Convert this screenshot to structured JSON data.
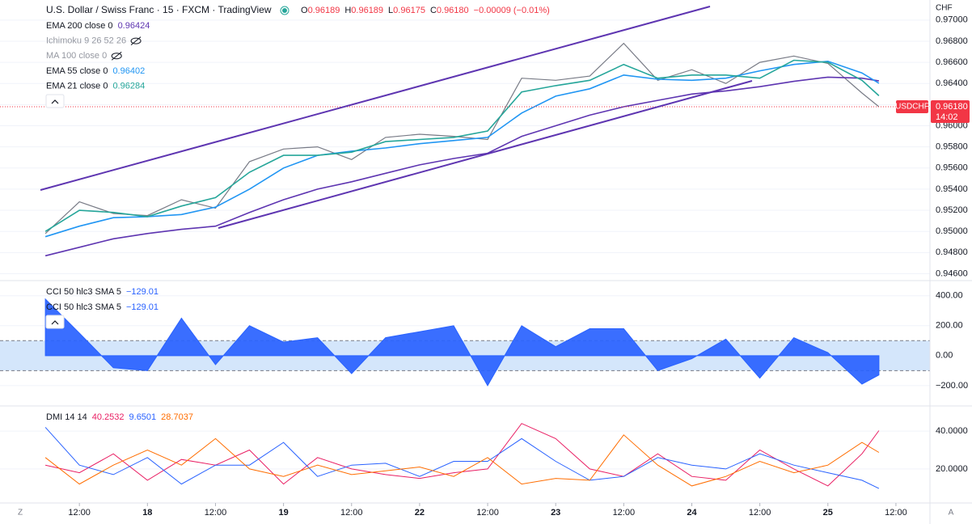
{
  "ui_buttons": [
    "Z",
    "A"
  ],
  "chart_data": [
    {
      "type": "line",
      "title": "U.S. Dollar / Swiss Franc · 15 · FXCM · TradingView",
      "ohlc": [
        {
          "key": "O",
          "value": "0.96189"
        },
        {
          "key": "H",
          "value": "0.96189"
        },
        {
          "key": "L",
          "value": "0.96175"
        },
        {
          "key": "C",
          "value": "0.96180"
        }
      ],
      "change": "−0.00009 (−0.01%)",
      "xlim": [
        -14,
        150
      ],
      "x": [
        -6,
        0,
        6,
        12,
        18,
        24,
        30,
        36,
        42,
        48,
        54,
        60,
        66,
        72,
        78,
        84,
        90,
        96,
        102,
        108,
        114,
        120,
        126,
        132,
        138,
        141
      ],
      "price": {
        "color": "#787b86",
        "values": [
          0.9498,
          0.9528,
          0.9517,
          0.9515,
          0.953,
          0.9522,
          0.9566,
          0.9578,
          0.958,
          0.9568,
          0.9589,
          0.9592,
          0.959,
          0.9587,
          0.9645,
          0.9643,
          0.9647,
          0.9678,
          0.9643,
          0.9653,
          0.964,
          0.966,
          0.9666,
          0.9659,
          0.9631,
          0.9618
        ]
      },
      "series": [
        {
          "name": "EMA 200 close 0",
          "color": "#5e35b1",
          "values": [
            0.9477,
            0.9485,
            0.9493,
            0.9498,
            0.9502,
            0.9505,
            0.9518,
            0.953,
            0.954,
            0.9547,
            0.9555,
            0.9563,
            0.9569,
            0.9574,
            0.959,
            0.96,
            0.961,
            0.9618,
            0.9624,
            0.963,
            0.9633,
            0.9637,
            0.9642,
            0.9646,
            0.9645,
            0.96424
          ]
        },
        {
          "name": "EMA 55 close 0",
          "color": "#2196f3",
          "values": [
            0.9495,
            0.9505,
            0.9513,
            0.9514,
            0.9516,
            0.9523,
            0.954,
            0.956,
            0.9572,
            0.9576,
            0.9579,
            0.9583,
            0.9586,
            0.9589,
            0.9612,
            0.9628,
            0.9635,
            0.9648,
            0.9644,
            0.9643,
            0.9645,
            0.9652,
            0.9658,
            0.9661,
            0.965,
            0.96402
          ]
        },
        {
          "name": "EMA 21 close 0",
          "color": "#26a69a",
          "values": [
            0.95,
            0.952,
            0.9518,
            0.9514,
            0.9524,
            0.9532,
            0.9556,
            0.9572,
            0.9572,
            0.9575,
            0.9585,
            0.9587,
            0.9589,
            0.9595,
            0.9632,
            0.9638,
            0.9643,
            0.9658,
            0.9645,
            0.9648,
            0.9648,
            0.9645,
            0.9662,
            0.966,
            0.9643,
            0.96284
          ]
        }
      ],
      "hidden_indicators": [
        "Ichimoku 9 26 52 26",
        "MA 100 close 0"
      ],
      "currency": "CHF",
      "price_tag": {
        "symbol": "USDCHF",
        "value": 0.9618,
        "label": "0.96180",
        "countdown": "14:02"
      },
      "ylim": [
        0.9455,
        0.9719
      ],
      "yticks": [
        {
          "value": 0.946,
          "label": "0.94600"
        },
        {
          "value": 0.948,
          "label": "0.94800"
        },
        {
          "value": 0.95,
          "label": "0.95000"
        },
        {
          "value": 0.952,
          "label": "0.95200"
        },
        {
          "value": 0.954,
          "label": "0.95400"
        },
        {
          "value": 0.956,
          "label": "0.95600"
        },
        {
          "value": 0.958,
          "label": "0.95800"
        },
        {
          "value": 0.96,
          "label": "0.96000"
        },
        {
          "value": 0.962,
          "label": "0.96200"
        },
        {
          "value": 0.964,
          "label": "0.96400"
        },
        {
          "value": 0.966,
          "label": "0.96600"
        },
        {
          "value": 0.968,
          "label": "0.96800"
        },
        {
          "value": 0.97,
          "label": "0.97000"
        }
      ]
    },
    {
      "type": "area",
      "title": "CCI 50 hlc3 SMA 5",
      "legend_value": "−129.01",
      "color": "#2962ff",
      "band": [
        -100,
        100
      ],
      "xlim": [
        -14,
        150
      ],
      "x": [
        -6,
        0,
        6,
        12,
        18,
        24,
        30,
        36,
        42,
        48,
        54,
        60,
        66,
        72,
        78,
        84,
        90,
        96,
        102,
        108,
        114,
        120,
        126,
        132,
        138,
        141
      ],
      "values": [
        378,
        150,
        -81,
        -100,
        250,
        -60,
        200,
        90,
        120,
        -120,
        120,
        160,
        200,
        -200,
        200,
        60,
        180,
        180,
        -100,
        -20,
        110,
        -150,
        120,
        20,
        -190,
        -129.01
      ],
      "ylim": [
        -325,
        485
      ],
      "yticks": [
        {
          "value": -200,
          "label": "−200.00"
        },
        {
          "value": 0,
          "label": "0.00"
        },
        {
          "value": 200,
          "label": "200.00"
        },
        {
          "value": 400,
          "label": "400.00"
        }
      ]
    },
    {
      "type": "line",
      "title": "DMI 14 14",
      "xlim": [
        -14,
        150
      ],
      "x": [
        -6,
        0,
        6,
        12,
        18,
        24,
        30,
        36,
        42,
        48,
        54,
        60,
        66,
        72,
        78,
        84,
        90,
        96,
        102,
        108,
        114,
        120,
        126,
        132,
        138,
        141
      ],
      "series": [
        {
          "color": "#e91e63",
          "values": [
            22,
            18,
            28,
            14,
            25,
            22,
            30,
            12,
            26,
            20,
            17,
            15,
            18,
            20,
            44,
            36,
            20,
            16,
            28,
            16,
            14,
            30,
            20,
            11,
            28,
            40.2532
          ]
        },
        {
          "color": "#2962ff",
          "values": [
            42,
            22,
            17,
            26,
            12,
            22,
            22,
            34,
            16,
            22,
            23,
            16,
            24,
            24,
            36,
            24,
            14,
            16,
            26,
            22,
            20,
            28,
            22,
            18,
            14,
            9.6501
          ]
        },
        {
          "color": "#ff6d00",
          "values": [
            26,
            12,
            22,
            30,
            22,
            36,
            20,
            16,
            22,
            17,
            19,
            21,
            16,
            26,
            12,
            15,
            14,
            38,
            22,
            11,
            16,
            24,
            18,
            22,
            34,
            28.7037
          ]
        }
      ],
      "ylim": [
        2,
        52
      ],
      "yticks": [
        {
          "value": 20,
          "label": "20.0000"
        },
        {
          "value": 40,
          "label": "40.0000"
        }
      ],
      "xticks": [
        {
          "value": 0,
          "label": "12:00"
        },
        {
          "value": 12,
          "label": "18"
        },
        {
          "value": 24,
          "label": "12:00"
        },
        {
          "value": 36,
          "label": "19"
        },
        {
          "value": 48,
          "label": "12:00"
        },
        {
          "value": 60,
          "label": "22"
        },
        {
          "value": 72,
          "label": "12:00"
        },
        {
          "value": 84,
          "label": "23"
        },
        {
          "value": 96,
          "label": "12:00"
        },
        {
          "value": 108,
          "label": "24"
        },
        {
          "value": 120,
          "label": "12:00"
        },
        {
          "value": 132,
          "label": "25"
        },
        {
          "value": 144,
          "label": "12:00"
        }
      ]
    }
  ]
}
